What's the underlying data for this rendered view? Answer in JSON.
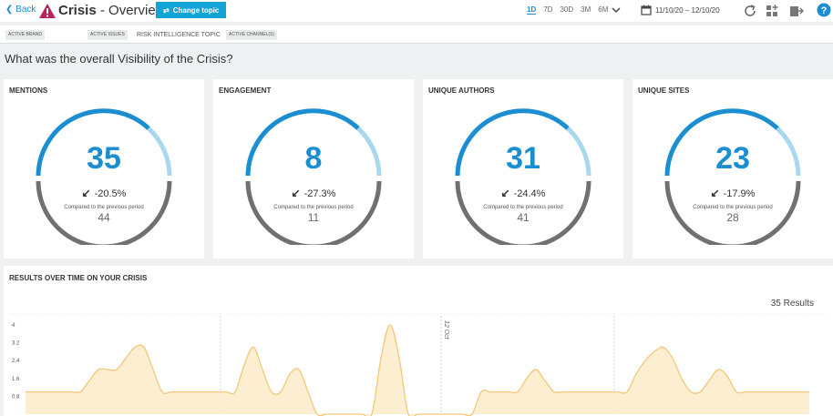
{
  "header": {
    "back_label": "Back",
    "title_bold": "Crisis",
    "title_rest": " - Overview",
    "change_topic_label": "Change topic",
    "ranges": [
      "1D",
      "7D",
      "30D",
      "3M",
      "6M"
    ],
    "active_range": "1D",
    "date_range": "11/10/20 – 12/10/20"
  },
  "filters": {
    "active_brand": "ACTIVE BRAND",
    "active_issues": "ACTIVE ISSUES",
    "topic": "RISK INTELLIGENCE TOPIC",
    "active_channels": "ACTIVE CHANNEL(S)"
  },
  "question": "What was the overall Visibility of the Crisis?",
  "cards": [
    {
      "title": "MENTIONS",
      "value": "35",
      "change": "-20.5%",
      "compared": "Compared to the previous period",
      "prev": "44"
    },
    {
      "title": "ENGAGEMENT",
      "value": "8",
      "change": "-27.3%",
      "compared": "Compared to the previous period",
      "prev": "11"
    },
    {
      "title": "UNIQUE AUTHORS",
      "value": "31",
      "change": "-24.4%",
      "compared": "Compared to the previous period",
      "prev": "41"
    },
    {
      "title": "UNIQUE SITES",
      "value": "23",
      "change": "-17.9%",
      "compared": "Compared to the previous period",
      "prev": "28"
    }
  ],
  "results": {
    "title": "RESULTS OVER TIME ON YOUR CRISIS",
    "count_label": "35 Results"
  },
  "colors": {
    "accent": "#1a8ed0",
    "accent_light": "#a9d8ee",
    "gauge_gray": "#707070",
    "warning": "#b5255a",
    "area_fill": "#fcebc8",
    "area_line": "#f4c778"
  },
  "chart_data": {
    "type": "area",
    "title": "",
    "xlabel": "",
    "ylabel": "",
    "yticks": [
      "4",
      "3.2",
      "2.4",
      "1.6",
      "0.8"
    ],
    "ylim": [
      0,
      4.2
    ],
    "annotation": "12 Oct",
    "x": [
      0,
      1,
      2,
      3,
      4,
      5,
      6,
      7,
      8,
      9,
      10,
      11,
      12,
      13,
      14,
      15,
      16,
      17,
      18,
      19,
      20,
      21,
      22,
      23,
      24,
      25,
      26,
      27,
      28,
      29,
      30,
      31,
      32,
      33,
      34,
      35,
      36,
      37,
      38,
      39,
      40,
      41,
      42,
      43,
      44,
      45,
      46,
      47,
      48,
      49,
      50,
      51,
      52,
      53,
      54,
      55,
      56,
      57,
      58,
      59,
      60,
      61,
      62,
      63,
      64,
      65,
      66,
      67,
      68,
      69,
      70,
      71,
      72,
      73,
      74,
      75,
      76,
      77,
      78,
      79,
      80,
      81,
      82,
      83,
      84,
      85,
      86
    ],
    "values": [
      1,
      1,
      1,
      1,
      1,
      1,
      1,
      1.5,
      2,
      2,
      2,
      2.5,
      3,
      3,
      2,
      1,
      1,
      1,
      1,
      1,
      1,
      1,
      1,
      1,
      2.2,
      3,
      2,
      1,
      1,
      1.8,
      2,
      1,
      0,
      0,
      0,
      0,
      0,
      0,
      0,
      2.5,
      4,
      2.5,
      0,
      0,
      0,
      0,
      0,
      0,
      0,
      0,
      1,
      1,
      1,
      1,
      1,
      1.6,
      2,
      1.5,
      1,
      1,
      1,
      1,
      1,
      1,
      1,
      1,
      1,
      1.8,
      2.4,
      2.8,
      3,
      2.5,
      1.6,
      1,
      1,
      1.5,
      2,
      1.7,
      1,
      1,
      1,
      1,
      1,
      1,
      1,
      1,
      1
    ]
  }
}
